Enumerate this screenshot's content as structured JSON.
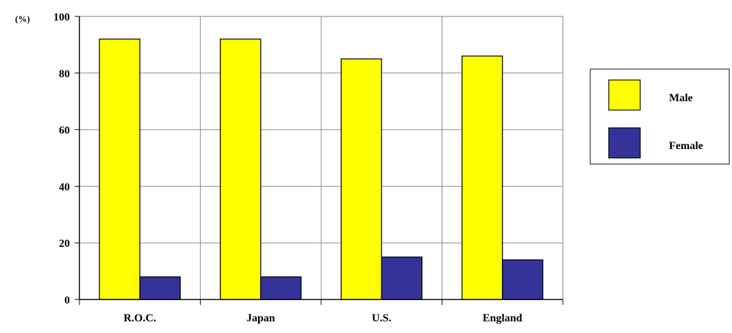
{
  "chart_data": {
    "type": "bar",
    "unit_label": "(%)",
    "categories": [
      "R.O.C.",
      "Japan",
      "U.S.",
      "England"
    ],
    "series": [
      {
        "name": "Male",
        "values": [
          92,
          92,
          85,
          86
        ],
        "color": "#ffff00"
      },
      {
        "name": "Female",
        "values": [
          8,
          8,
          15,
          14
        ],
        "color": "#333399"
      }
    ],
    "ylim": [
      0,
      100
    ],
    "yticks": [
      0,
      20,
      40,
      60,
      80,
      100
    ],
    "grid": true,
    "legend": "right"
  }
}
